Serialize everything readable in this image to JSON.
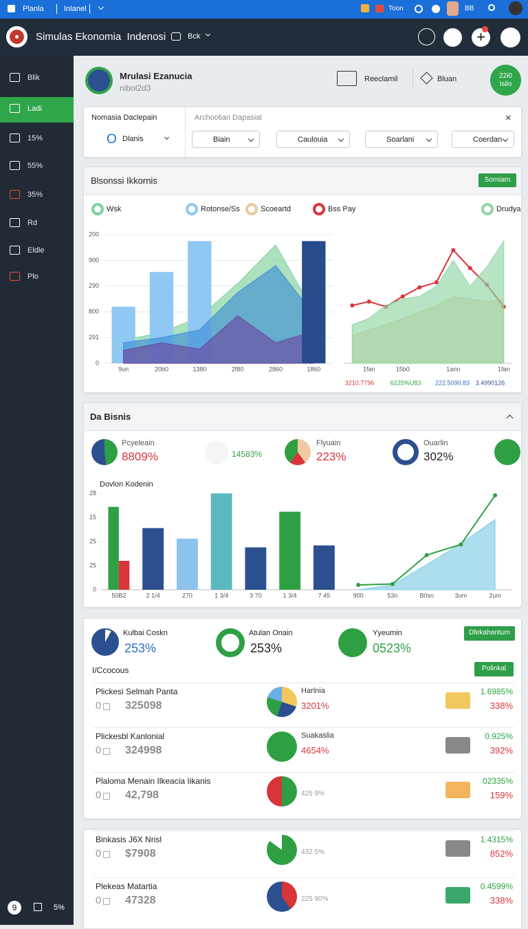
{
  "top_bar": {
    "app": "Planla",
    "tab": "Inlanel",
    "user": "Toon",
    "code": "BB"
  },
  "header": {
    "title": "Simulas Ekonomia  Indenosi",
    "menu": "Bck"
  },
  "sidebar": {
    "items": [
      "Blik",
      "Ladi",
      "15%",
      "55%",
      "35%",
      "Rd",
      "Eldle",
      "Plo"
    ],
    "footer": [
      "9",
      "5%"
    ]
  },
  "profile": {
    "title": "Mrulasi Ezanucia",
    "subtitle": "nibol2d3",
    "actions": [
      "Reeclamil",
      "Bluan"
    ],
    "badge": [
      "22i0",
      "Isilo"
    ]
  },
  "filters": {
    "label": "Nomasia Daclepain",
    "prefix": "O",
    "select": "Dlanis",
    "placeholder": "Archoolian Dapasial",
    "dropdowns": [
      "Biain",
      "Caulouia",
      "Soarlani",
      "Coerdan"
    ]
  },
  "chart_card": {
    "title": "Blsonssi Ikkornis",
    "button": "Sorniarn",
    "totals": [
      "3210.7796",
      "6225%U83",
      "222.5090.83",
      "3.4990126"
    ]
  },
  "chart_data": [
    {
      "type": "bar",
      "categories": [
        "9un",
        "20b0",
        "1380",
        "2f80",
        "2860",
        "1860"
      ],
      "ylim": [
        0,
        100
      ],
      "yticks": [
        0,
        {
          "value": 20,
          "label": "291"
        },
        {
          "value": 40,
          "label": "800"
        },
        {
          "value": 60,
          "label": "290"
        },
        {
          "value": 80,
          "label": "900"
        },
        {
          "value": 100,
          "label": "200"
        }
      ],
      "grid": true,
      "series": [
        {
          "name": "Wsk",
          "kind": "area",
          "color": "#7fd19b",
          "values": [
            18,
            24,
            36,
            62,
            92,
            40
          ]
        },
        {
          "name": "Rotonse/Ss",
          "kind": "bar",
          "color": "#8fc8f2",
          "values": [
            44,
            71,
            95,
            null,
            null,
            null
          ]
        },
        {
          "kind": "area",
          "color": "#3f8fd6",
          "values": [
            16,
            20,
            26,
            55,
            76,
            38
          ]
        },
        {
          "kind": "area",
          "color": "#6b4aa0",
          "values": [
            10,
            16,
            11,
            37,
            16,
            25
          ]
        },
        {
          "kind": "bar",
          "color": "#274b8c",
          "values": [
            null,
            null,
            null,
            null,
            null,
            95
          ]
        }
      ]
    },
    {
      "type": "line",
      "categories": [
        null,
        "1fan",
        null,
        "15b0",
        null,
        null,
        "1ann",
        null,
        null,
        "1fan"
      ],
      "ylim": [
        0,
        100
      ],
      "series": [
        {
          "name": "Scoeartd",
          "kind": "area",
          "color": "#e8c9a0",
          "values": [
            22,
            26,
            30,
            35,
            40,
            45,
            52,
            50,
            48,
            50
          ]
        },
        {
          "name": "Bss Pay",
          "kind": "line",
          "color": "#d9343a",
          "markers": true,
          "values": [
            45,
            48,
            44,
            52,
            59,
            63,
            88,
            74,
            61,
            44
          ]
        },
        {
          "name": "Drudya",
          "kind": "area",
          "color": "#8fd6a5",
          "values": [
            30,
            35,
            45,
            50,
            52,
            60,
            80,
            60,
            75,
            95
          ]
        }
      ]
    },
    {
      "type": "bar",
      "title": "Dovlon Kodenin",
      "categories": [
        "50B2",
        "2 1/4",
        "270",
        "1 3/4",
        "3 70",
        "1 3/4",
        "7 45",
        "900",
        "53n",
        "B0sn",
        "3um",
        "2um"
      ],
      "ylim": [
        0,
        100
      ],
      "yticks": [
        0,
        25,
        {
          "value": 50,
          "label": "25"
        },
        {
          "value": 75,
          "label": "15"
        },
        {
          "value": 100,
          "label": "28"
        }
      ],
      "series": [
        {
          "kind": "bar",
          "color": "#2ea043",
          "values": [
            86,
            null,
            null,
            null,
            null,
            81,
            null,
            null,
            null,
            null,
            null,
            null
          ]
        },
        {
          "kind": "bar",
          "color": "#d9343a",
          "values": [
            30,
            null,
            null,
            null,
            null,
            null,
            null,
            null,
            null,
            null,
            null,
            null
          ]
        },
        {
          "kind": "bar",
          "color": "#2c4f8f",
          "values": [
            null,
            64,
            null,
            null,
            44,
            null,
            46,
            null,
            null,
            null,
            null,
            null
          ]
        },
        {
          "kind": "bar",
          "color": "#8ec3ee",
          "values": [
            null,
            null,
            53,
            null,
            null,
            null,
            null,
            null,
            null,
            null,
            null,
            null
          ]
        },
        {
          "kind": "bar",
          "color": "#5cb8bf",
          "values": [
            null,
            null,
            null,
            100,
            null,
            null,
            null,
            null,
            null,
            null,
            null,
            null
          ]
        },
        {
          "kind": "area",
          "color": "#7fcde3",
          "values": [
            null,
            null,
            null,
            null,
            null,
            null,
            null,
            0,
            5,
            26,
            48,
            73
          ]
        },
        {
          "kind": "line",
          "color": "#2ea043",
          "markers": true,
          "values": [
            null,
            null,
            null,
            null,
            null,
            null,
            null,
            5,
            6,
            36,
            47,
            98
          ]
        }
      ]
    }
  ],
  "bisnis": {
    "title": "Da Bisnis",
    "kpis": [
      {
        "label": "Pcyeleain",
        "value": "8809%"
      },
      {
        "value": "14583%"
      },
      {
        "label": "Flyuain",
        "value": "223%"
      },
      {
        "label": "Ouarlin",
        "value": "302%"
      }
    ]
  },
  "summary": {
    "kpis": [
      {
        "label": "Kulbai Coskn",
        "value": "253%"
      },
      {
        "label": "Atulan Onain",
        "value": "253%"
      },
      {
        "label": "Yyeumin",
        "value": "0523%"
      }
    ],
    "button": "Dfekahanturn",
    "heading": "I/Ccocous",
    "button2": "Polinkal",
    "rows": [
      {
        "name": "Plickesi Selmah Panta",
        "prefix": "0",
        "value": "325098",
        "mid_label": "Harlnia",
        "mid_value": "3201%",
        "right_top": "1.6985%",
        "right_bottom": "338%"
      },
      {
        "name": "Plickesbl Kanlonial",
        "prefix": "0",
        "value": "324998",
        "mid_label": "Suakaslia",
        "mid_value": "4654%",
        "right_top": "0.925%",
        "right_bottom": "392%"
      },
      {
        "name": "Plaloma Menain Ilkeacia Iikanis",
        "prefix": "0",
        "value": "42,798",
        "mid_value": "425 9%",
        "right_top": "02335%",
        "right_bottom": "159%"
      }
    ]
  },
  "list2": {
    "rows": [
      {
        "name": "Binkasis J6X Nrisl",
        "prefix": "0",
        "value": "$7908",
        "mid_value": "432 5%",
        "right_top": "1.4315%",
        "right_bottom": "852%"
      },
      {
        "name": "Plekeas Matartia",
        "prefix": "0",
        "value": "47328",
        "mid_value": "225 90%",
        "right_top": "0.4599%",
        "right_bottom": "338%"
      }
    ]
  }
}
